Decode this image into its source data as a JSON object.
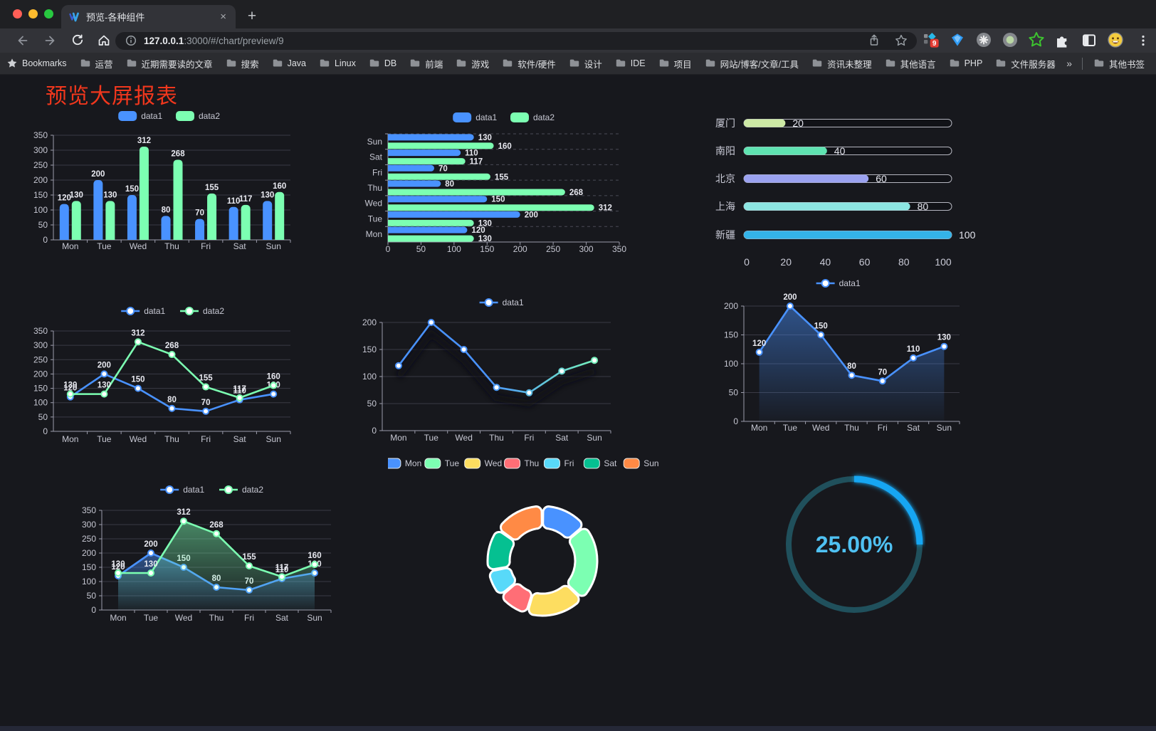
{
  "browser": {
    "tab": {
      "title": "预览-各种组件",
      "close_label": "×"
    },
    "new_tab_label": "+",
    "url": {
      "host": "127.0.0.1",
      "rest": ":3000/#/chart/preview/9"
    },
    "extension_badge": "9",
    "extensions": [
      "pinned-apps-icon",
      "gem-icon",
      "asterisk-circle-icon",
      "record-circle-icon",
      "green-star-icon",
      "puzzle-icon",
      "split-screen-icon",
      "emoji-icon"
    ],
    "bookmarks_bar": {
      "bookmarks_label": "Bookmarks",
      "folders": [
        "运营",
        "近期需要读的文章",
        "搜索",
        "Java",
        "Linux",
        "DB",
        "前端",
        "游戏",
        "软件/硬件",
        "设计",
        "IDE",
        "项目",
        "网站/博客/文章/工具",
        "资讯未整理",
        "其他语言",
        "PHP",
        "文件服务器"
      ],
      "overflow": "»",
      "other_bookmarks": "其他书签"
    }
  },
  "page": {
    "title": "预览大屏报表",
    "title_color": "#f1371d",
    "background": "#17181d"
  },
  "chart_data": [
    {
      "id": "grouped-bar",
      "type": "bar",
      "categories": [
        "Mon",
        "Tue",
        "Wed",
        "Thu",
        "Fri",
        "Sat",
        "Sun"
      ],
      "series": [
        {
          "name": "data1",
          "color": "#4992ff",
          "values": [
            120,
            200,
            150,
            80,
            70,
            110,
            130
          ]
        },
        {
          "name": "data2",
          "color": "#7cffb2",
          "values": [
            130,
            130,
            312,
            268,
            155,
            117,
            160
          ]
        }
      ],
      "ylim": [
        0,
        350
      ],
      "ystep": 50,
      "show_labels": true,
      "legend_position": "top",
      "grid": true
    },
    {
      "id": "horizontal-bar",
      "type": "bar-horizontal",
      "categories": [
        "Mon",
        "Tue",
        "Wed",
        "Thu",
        "Fri",
        "Sat",
        "Sun"
      ],
      "series": [
        {
          "name": "data1",
          "color": "#4992ff",
          "values": [
            120,
            200,
            150,
            80,
            70,
            110,
            130
          ]
        },
        {
          "name": "data2",
          "color": "#7cffb2",
          "values": [
            130,
            130,
            312,
            268,
            155,
            117,
            160
          ]
        }
      ],
      "xlim": [
        0,
        350
      ],
      "xstep": 50,
      "show_labels": true,
      "category_order": "Mon at bottom"
    },
    {
      "id": "progress-bars",
      "type": "progress",
      "items": [
        {
          "label": "厦门",
          "value": 20,
          "color": "#cde9a5"
        },
        {
          "label": "南阳",
          "value": 40,
          "color": "#5fe3b1"
        },
        {
          "label": "北京",
          "value": 60,
          "color": "#9ba2f0"
        },
        {
          "label": "上海",
          "value": 80,
          "color": "#8ce6e2"
        },
        {
          "label": "新疆",
          "value": 100,
          "color": "#34b3e8"
        }
      ],
      "xlim": [
        0,
        100
      ],
      "xticks": [
        0,
        20,
        40,
        60,
        80,
        100
      ]
    },
    {
      "id": "two-line",
      "type": "line",
      "categories": [
        "Mon",
        "Tue",
        "Wed",
        "Thu",
        "Fri",
        "Sat",
        "Sun"
      ],
      "series": [
        {
          "name": "data1",
          "color": "#4992ff",
          "values": [
            120,
            200,
            150,
            80,
            70,
            110,
            130
          ]
        },
        {
          "name": "data2",
          "color": "#7cffb2",
          "values": [
            130,
            130,
            312,
            268,
            155,
            117,
            160
          ]
        }
      ],
      "ylim": [
        0,
        350
      ],
      "ystep": 50,
      "show_labels": true
    },
    {
      "id": "gradient-line",
      "type": "line",
      "categories": [
        "Mon",
        "Tue",
        "Wed",
        "Thu",
        "Fri",
        "Sat",
        "Sun"
      ],
      "series": [
        {
          "name": "data1",
          "color": "#4992ff",
          "color_end": "#7cffb2",
          "values": [
            120,
            200,
            150,
            80,
            70,
            110,
            130
          ]
        }
      ],
      "ylim": [
        0,
        200
      ],
      "ystep": 50,
      "show_labels": false,
      "shadow": true
    },
    {
      "id": "single-area",
      "type": "line",
      "categories": [
        "Mon",
        "Tue",
        "Wed",
        "Thu",
        "Fri",
        "Sat",
        "Sun"
      ],
      "series": [
        {
          "name": "data1",
          "color": "#4992ff",
          "area": true,
          "values": [
            120,
            200,
            150,
            80,
            70,
            110,
            130
          ]
        }
      ],
      "ylim": [
        0,
        200
      ],
      "ystep": 50,
      "show_labels": true
    },
    {
      "id": "two-line-area",
      "type": "line",
      "categories": [
        "Mon",
        "Tue",
        "Wed",
        "Thu",
        "Fri",
        "Sat",
        "Sun"
      ],
      "series": [
        {
          "name": "data1",
          "color": "#4992ff",
          "area": true,
          "values": [
            120,
            200,
            150,
            80,
            70,
            110,
            130
          ]
        },
        {
          "name": "data2",
          "color": "#7cffb2",
          "area": true,
          "values": [
            130,
            130,
            312,
            268,
            155,
            117,
            160
          ]
        }
      ],
      "ylim": [
        0,
        350
      ],
      "ystep": 50,
      "show_labels": true
    },
    {
      "id": "donut",
      "type": "pie",
      "items": [
        {
          "label": "Mon",
          "value": 120,
          "color": "#4992ff"
        },
        {
          "label": "Tue",
          "value": 200,
          "color": "#7cffb2"
        },
        {
          "label": "Wed",
          "value": 150,
          "color": "#fddd60"
        },
        {
          "label": "Thu",
          "value": 80,
          "color": "#ff6e76"
        },
        {
          "label": "Fri",
          "value": 70,
          "color": "#58d9f9"
        },
        {
          "label": "Sat",
          "value": 110,
          "color": "#05c091"
        },
        {
          "label": "Sun",
          "value": 130,
          "color": "#ff8a45"
        }
      ],
      "border_color": "#ffffff",
      "donut": true
    },
    {
      "id": "gauge",
      "type": "gauge",
      "value": 25,
      "display": "25.00%",
      "arc_color": "#18a6f2",
      "track_color": "#20505c",
      "text_color": "#4fc1f2"
    }
  ]
}
